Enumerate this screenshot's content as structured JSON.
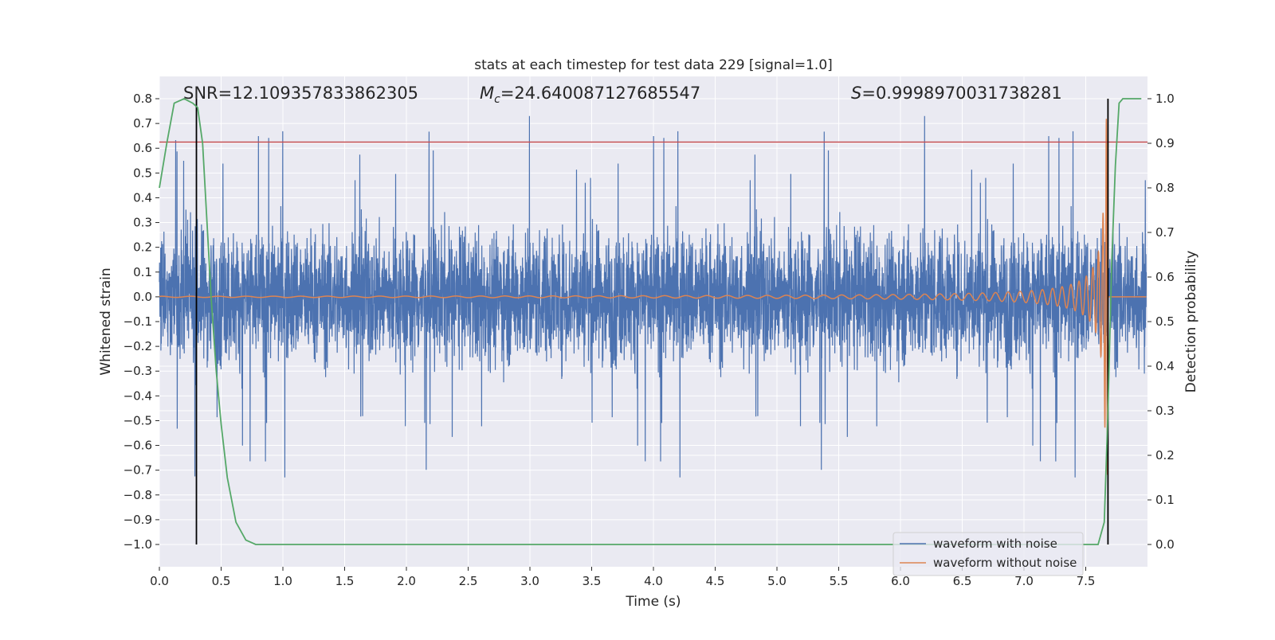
{
  "chart_data": {
    "type": "line",
    "title": "stats at each timestep for test data 229 [signal=1.0]",
    "xlabel": "Time (s)",
    "ylabel": "Whitened strain",
    "ylabel_right": "Detection probability",
    "xlim": [
      0.0,
      8.0
    ],
    "ylim": [
      -1.09,
      0.89
    ],
    "ylim_right": [
      -0.05,
      1.05
    ],
    "grid": true,
    "legend_position": "lower-right",
    "x_ticks": [
      "0.0",
      "0.5",
      "1.0",
      "1.5",
      "2.0",
      "2.5",
      "3.0",
      "3.5",
      "4.0",
      "4.5",
      "5.0",
      "5.5",
      "6.0",
      "6.5",
      "7.0",
      "7.5"
    ],
    "y_ticks": [
      "0.8",
      "0.7",
      "0.6",
      "0.5",
      "0.4",
      "0.3",
      "0.2",
      "0.1",
      "0.0",
      "−0.1",
      "−0.2",
      "−0.3",
      "−0.4",
      "−0.5",
      "−0.6",
      "−0.7",
      "−0.8",
      "−0.9",
      "−1.0"
    ],
    "y_ticks_right": [
      "1.0",
      "0.9",
      "0.8",
      "0.7",
      "0.6",
      "0.5",
      "0.4",
      "0.3",
      "0.2",
      "0.1",
      "0.0"
    ],
    "annotations": {
      "snr": "SNR=12.109357833862305",
      "mc_symbol": "M",
      "mc_subscript": "c",
      "mc_value": "=24.640087127685547",
      "s_symbol": "S",
      "s_value": "=0.9998970031738281"
    },
    "threshold_line": {
      "y": 0.625,
      "color": "#c44e52"
    },
    "vertical_markers": {
      "x": [
        0.3,
        7.68
      ],
      "y_range": [
        -1.0,
        0.8
      ],
      "color": "#000000"
    },
    "series": [
      {
        "name": "waveform with noise",
        "color": "#4c72b0",
        "description_values": {
          "typical_amplitude": 0.3,
          "max_peak": 0.8,
          "min_peak": -0.81,
          "peak_at_x": [
            1.12,
            5.45,
            3.09,
            4.16
          ]
        }
      },
      {
        "name": "waveform without noise",
        "color": "#dd8452",
        "chirp": {
          "start_x": 0.0,
          "merger_x": 7.68,
          "peak_amplitude": 0.72,
          "start_amplitude": 0.003
        }
      },
      {
        "name": "detection probability",
        "axis": "right",
        "color": "#55a868",
        "x": [
          0.0,
          0.06,
          0.12,
          0.2,
          0.27,
          0.31,
          0.35,
          0.38,
          0.42,
          0.46,
          0.5,
          0.55,
          0.62,
          0.7,
          0.78,
          0.85,
          1.0,
          5.0,
          7.0,
          7.6,
          7.65,
          7.68,
          7.71,
          7.74,
          7.77,
          7.8,
          7.85,
          7.95
        ],
        "y": [
          0.8,
          0.9,
          0.99,
          1.0,
          0.99,
          0.98,
          0.9,
          0.75,
          0.55,
          0.39,
          0.27,
          0.15,
          0.05,
          0.01,
          0.0,
          0.0,
          0.0,
          0.0,
          0.0,
          0.0,
          0.05,
          0.3,
          0.63,
          0.85,
          0.99,
          1.0,
          1.0,
          1.0
        ]
      }
    ]
  }
}
